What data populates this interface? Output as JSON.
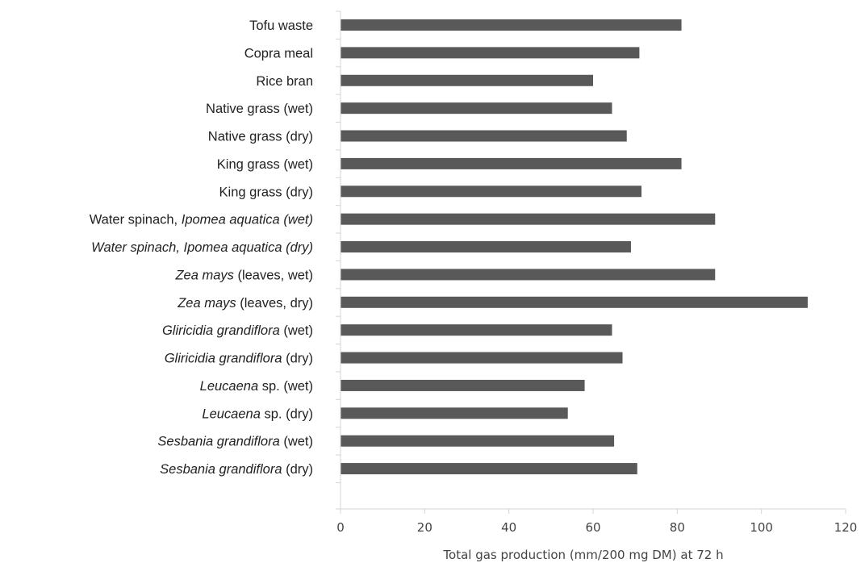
{
  "chart_data": {
    "type": "bar",
    "orientation": "horizontal",
    "categories": [
      {
        "parts": [
          {
            "text": "Tofu waste",
            "italic": false
          }
        ]
      },
      {
        "parts": [
          {
            "text": "Copra meal",
            "italic": false
          }
        ]
      },
      {
        "parts": [
          {
            "text": "Rice bran",
            "italic": false
          }
        ]
      },
      {
        "parts": [
          {
            "text": "Native grass (wet)",
            "italic": false
          }
        ]
      },
      {
        "parts": [
          {
            "text": "Native grass (dry)",
            "italic": false
          }
        ]
      },
      {
        "parts": [
          {
            "text": "King grass (wet)",
            "italic": false
          }
        ]
      },
      {
        "parts": [
          {
            "text": "King grass (dry)",
            "italic": false
          }
        ]
      },
      {
        "parts": [
          {
            "text": "Water spinach, ",
            "italic": false
          },
          {
            "text": "Ipomea aquatica (wet)",
            "italic": true
          }
        ]
      },
      {
        "parts": [
          {
            "text": "Water spinach, Ipomea aquatica (dry)",
            "italic": true
          }
        ]
      },
      {
        "parts": [
          {
            "text": "Zea mays",
            "italic": true
          },
          {
            "text": " (leaves, wet)",
            "italic": false
          }
        ]
      },
      {
        "parts": [
          {
            "text": "Zea mays",
            "italic": true
          },
          {
            "text": " (leaves, dry)",
            "italic": false
          }
        ]
      },
      {
        "parts": [
          {
            "text": "Gliricidia grandiflora",
            "italic": true
          },
          {
            "text": " (wet)",
            "italic": false
          }
        ]
      },
      {
        "parts": [
          {
            "text": "Gliricidia grandiflora",
            "italic": true
          },
          {
            "text": " (dry)",
            "italic": false
          }
        ]
      },
      {
        "parts": [
          {
            "text": "Leucaena",
            "italic": true
          },
          {
            "text": " sp. (wet)",
            "italic": false
          }
        ]
      },
      {
        "parts": [
          {
            "text": "Leucaena",
            "italic": true
          },
          {
            "text": " sp. (dry)",
            "italic": false
          }
        ]
      },
      {
        "parts": [
          {
            "text": "Sesbania grandiflora",
            "italic": true
          },
          {
            "text": " (wet)",
            "italic": false
          }
        ]
      },
      {
        "parts": [
          {
            "text": "Sesbania grandiflora",
            "italic": true
          },
          {
            "text": " (dry)",
            "italic": false
          }
        ]
      }
    ],
    "values": [
      81,
      71,
      60,
      64.5,
      68,
      81,
      71.5,
      89,
      69,
      89,
      111,
      64.5,
      67,
      58,
      54,
      65,
      70.5
    ],
    "xlabel": "Total gas production (mm/200 mg DM) at 72 h",
    "xlim": [
      0,
      120
    ],
    "xticks": [
      0,
      20,
      40,
      60,
      80,
      100,
      120
    ],
    "bar_color": "#595959",
    "axis_color": "#d4d4d4",
    "grid": false,
    "legend": "none"
  }
}
